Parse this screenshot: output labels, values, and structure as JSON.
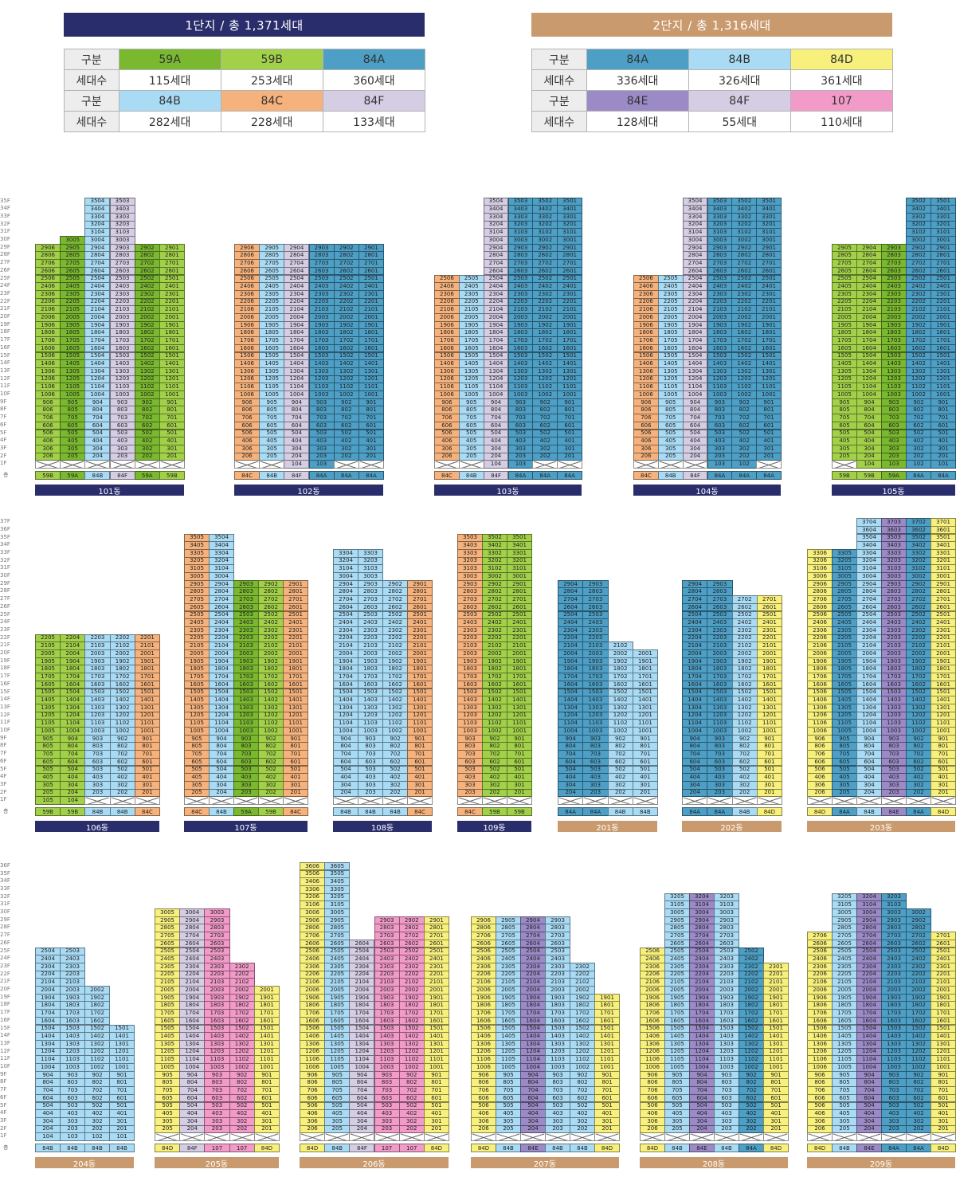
{
  "colors": {
    "59A": "#7ab82f",
    "59B": "#a2d149",
    "84A": "#4d9fc6",
    "84B": "#a9dbf5",
    "84C": "#f6b27c",
    "84D": "#f8f07c",
    "84E": "#9b8ac6",
    "84F": "#d5cde4",
    "107": "#f29bc9",
    "danji1": "#2a2d6b",
    "danji2": "#c99a6e"
  },
  "header": {
    "danji1_title": "1단지 / 총 1,371세대",
    "danji2_title": "2단지 / 총 1,316세대"
  },
  "summary": {
    "danji1": {
      "rows": [
        {
          "label": "구분",
          "cells": [
            {
              "text": "59A",
              "type": "59A"
            },
            {
              "text": "59B",
              "type": "59B"
            },
            {
              "text": "84A",
              "type": "84A"
            }
          ]
        },
        {
          "label": "세대수",
          "cells": [
            {
              "text": "115세대"
            },
            {
              "text": "253세대"
            },
            {
              "text": "360세대"
            }
          ]
        },
        {
          "label": "구분",
          "cells": [
            {
              "text": "84B",
              "type": "84B"
            },
            {
              "text": "84C",
              "type": "84C"
            },
            {
              "text": "84F",
              "type": "84F"
            }
          ]
        },
        {
          "label": "세대수",
          "cells": [
            {
              "text": "282세대"
            },
            {
              "text": "228세대"
            },
            {
              "text": "133세대"
            }
          ]
        }
      ]
    },
    "danji2": {
      "rows": [
        {
          "label": "구분",
          "cells": [
            {
              "text": "84A",
              "type": "84A"
            },
            {
              "text": "84B",
              "type": "84B"
            },
            {
              "text": "84D",
              "type": "84D"
            }
          ]
        },
        {
          "label": "세대수",
          "cells": [
            {
              "text": "336세대"
            },
            {
              "text": "326세대"
            },
            {
              "text": "361세대"
            }
          ]
        },
        {
          "label": "구분",
          "cells": [
            {
              "text": "84E",
              "type": "84E"
            },
            {
              "text": "84F",
              "type": "84F"
            },
            {
              "text": "107",
              "type": "107"
            }
          ]
        },
        {
          "label": "세대수",
          "cells": [
            {
              "text": "128세대"
            },
            {
              "text": "55세대"
            },
            {
              "text": "110세대"
            }
          ]
        }
      ]
    }
  },
  "floor_label_suffix": "F",
  "floor_row_label": "층",
  "buildings": [
    {
      "name": "101동",
      "danji": 1,
      "types": [
        "59B",
        "59A",
        "84B",
        "84F",
        "59A",
        "59B"
      ],
      "heights": [
        29,
        30,
        35,
        35,
        29,
        29
      ],
      "pilotis": [
        1,
        1,
        1,
        1,
        1,
        1
      ],
      "units": [
        "06",
        "05",
        "04",
        "03",
        "02",
        "01"
      ]
    },
    {
      "name": "102동",
      "danji": 1,
      "types": [
        "84C",
        "84B",
        "84F",
        "84A",
        "84A",
        "84A"
      ],
      "heights": [
        29,
        29,
        29,
        29,
        29,
        29
      ],
      "pilotis": [
        1,
        1,
        0,
        0,
        1,
        1
      ],
      "units": [
        "06",
        "05",
        "04",
        "03",
        "02",
        "01"
      ]
    },
    {
      "name": "103동",
      "danji": 1,
      "types": [
        "84C",
        "84B",
        "84F",
        "84A",
        "84A",
        "84A"
      ],
      "heights": [
        25,
        25,
        35,
        35,
        35,
        35
      ],
      "pilotis": [
        1,
        1,
        0,
        0,
        1,
        1
      ],
      "units": [
        "06",
        "05",
        "04",
        "03",
        "02",
        "01"
      ]
    },
    {
      "name": "104동",
      "danji": 1,
      "types": [
        "84C",
        "84B",
        "84F",
        "84A",
        "84A",
        "84A"
      ],
      "heights": [
        25,
        25,
        35,
        35,
        35,
        35
      ],
      "pilotis": [
        1,
        1,
        1,
        0,
        0,
        1
      ],
      "units": [
        "06",
        "05",
        "04",
        "03",
        "02",
        "01"
      ]
    },
    {
      "name": "105동",
      "danji": 1,
      "types": [
        "59B",
        "59B",
        "59A",
        "84A",
        "84A"
      ],
      "heights": [
        29,
        29,
        29,
        35,
        35
      ],
      "pilotis": [
        1,
        0,
        0,
        0,
        0
      ],
      "units": [
        "05",
        "04",
        "03",
        "02",
        "01"
      ]
    },
    {
      "name": "106동",
      "danji": 1,
      "types": [
        "59B",
        "59B",
        "84B",
        "84B",
        "84C"
      ],
      "heights": [
        22,
        22,
        22,
        22,
        22
      ],
      "pilotis": [
        0,
        0,
        1,
        1,
        1
      ],
      "units": [
        "05",
        "04",
        "03",
        "02",
        "01"
      ]
    },
    {
      "name": "107동",
      "danji": 1,
      "types": [
        "84C",
        "84B",
        "59A",
        "59B",
        "84C"
      ],
      "heights": [
        35,
        35,
        29,
        29,
        29
      ],
      "pilotis": [
        1,
        1,
        1,
        1,
        1
      ],
      "units": [
        "05",
        "04",
        "03",
        "02",
        "01"
      ]
    },
    {
      "name": "108동",
      "danji": 1,
      "types": [
        "84B",
        "84B",
        "84B",
        "84C"
      ],
      "heights": [
        33,
        33,
        29,
        29
      ],
      "pilotis": [
        1,
        1,
        1,
        1
      ],
      "units": [
        "04",
        "03",
        "02",
        "01"
      ]
    },
    {
      "name": "109동",
      "danji": 1,
      "types": [
        "84C",
        "59B",
        "59B"
      ],
      "heights": [
        35,
        35,
        35
      ],
      "pilotis": [
        1,
        1,
        1
      ],
      "units": [
        "03",
        "02",
        "01"
      ]
    },
    {
      "name": "201동",
      "danji": 2,
      "types": [
        "84A",
        "84A",
        "84B",
        "84B"
      ],
      "heights": [
        29,
        29,
        21,
        20
      ],
      "pilotis": [
        1,
        1,
        1,
        1
      ],
      "units": [
        "04",
        "03",
        "02",
        "01"
      ]
    },
    {
      "name": "202동",
      "danji": 2,
      "types": [
        "84A",
        "84A",
        "84B",
        "84D"
      ],
      "heights": [
        29,
        29,
        27,
        27
      ],
      "pilotis": [
        1,
        1,
        1,
        1
      ],
      "units": [
        "04",
        "03",
        "02",
        "01"
      ]
    },
    {
      "name": "203동",
      "danji": 2,
      "types": [
        "84D",
        "84A",
        "84B",
        "84E",
        "84A",
        "84D"
      ],
      "heights": [
        33,
        33,
        37,
        37,
        37,
        37
      ],
      "pilotis": [
        1,
        1,
        1,
        1,
        1,
        1
      ],
      "units": [
        "06",
        "05",
        "04",
        "03",
        "02",
        "01"
      ]
    },
    {
      "name": "204동",
      "danji": 2,
      "types": [
        "84B",
        "84B",
        "84B",
        "84B"
      ],
      "heights": [
        25,
        25,
        20,
        15
      ],
      "pilotis": [
        0,
        0,
        0,
        0
      ],
      "units": [
        "04",
        "03",
        "02",
        "01"
      ]
    },
    {
      "name": "205동",
      "danji": 2,
      "types": [
        "84D",
        "84F",
        "107",
        "107",
        "84D"
      ],
      "heights": [
        30,
        30,
        30,
        23,
        20
      ],
      "pilotis": [
        1,
        1,
        1,
        1,
        1
      ],
      "units": [
        "05",
        "04",
        "03",
        "02",
        "01"
      ]
    },
    {
      "name": "206동",
      "danji": 2,
      "types": [
        "84D",
        "84B",
        "84F",
        "107",
        "107",
        "84D"
      ],
      "heights": [
        36,
        36,
        26,
        29,
        29,
        29
      ],
      "pilotis": [
        1,
        1,
        1,
        1,
        1,
        1
      ],
      "units": [
        "06",
        "05",
        "04",
        "03",
        "02",
        "01"
      ]
    },
    {
      "name": "207동",
      "danji": 2,
      "types": [
        "84D",
        "84B",
        "84E",
        "84B",
        "84B",
        "84D"
      ],
      "heights": [
        29,
        29,
        29,
        29,
        23,
        19
      ],
      "pilotis": [
        1,
        1,
        1,
        1,
        1,
        1
      ],
      "units": [
        "06",
        "05",
        "04",
        "03",
        "02",
        "01"
      ]
    },
    {
      "name": "208동",
      "danji": 2,
      "types": [
        "84D",
        "84B",
        "84E",
        "84B",
        "84A",
        "84D"
      ],
      "heights": [
        25,
        32,
        32,
        32,
        25,
        23
      ],
      "pilotis": [
        1,
        1,
        1,
        1,
        1,
        1
      ],
      "units": [
        "06",
        "05",
        "04",
        "03",
        "02",
        "01"
      ]
    },
    {
      "name": "209동",
      "danji": 2,
      "types": [
        "84D",
        "84B",
        "84E",
        "84A",
        "84A",
        "84D"
      ],
      "heights": [
        27,
        32,
        32,
        32,
        30,
        27
      ],
      "pilotis": [
        1,
        1,
        1,
        1,
        1,
        1
      ],
      "units": [
        "06",
        "05",
        "04",
        "03",
        "02",
        "01"
      ]
    }
  ]
}
